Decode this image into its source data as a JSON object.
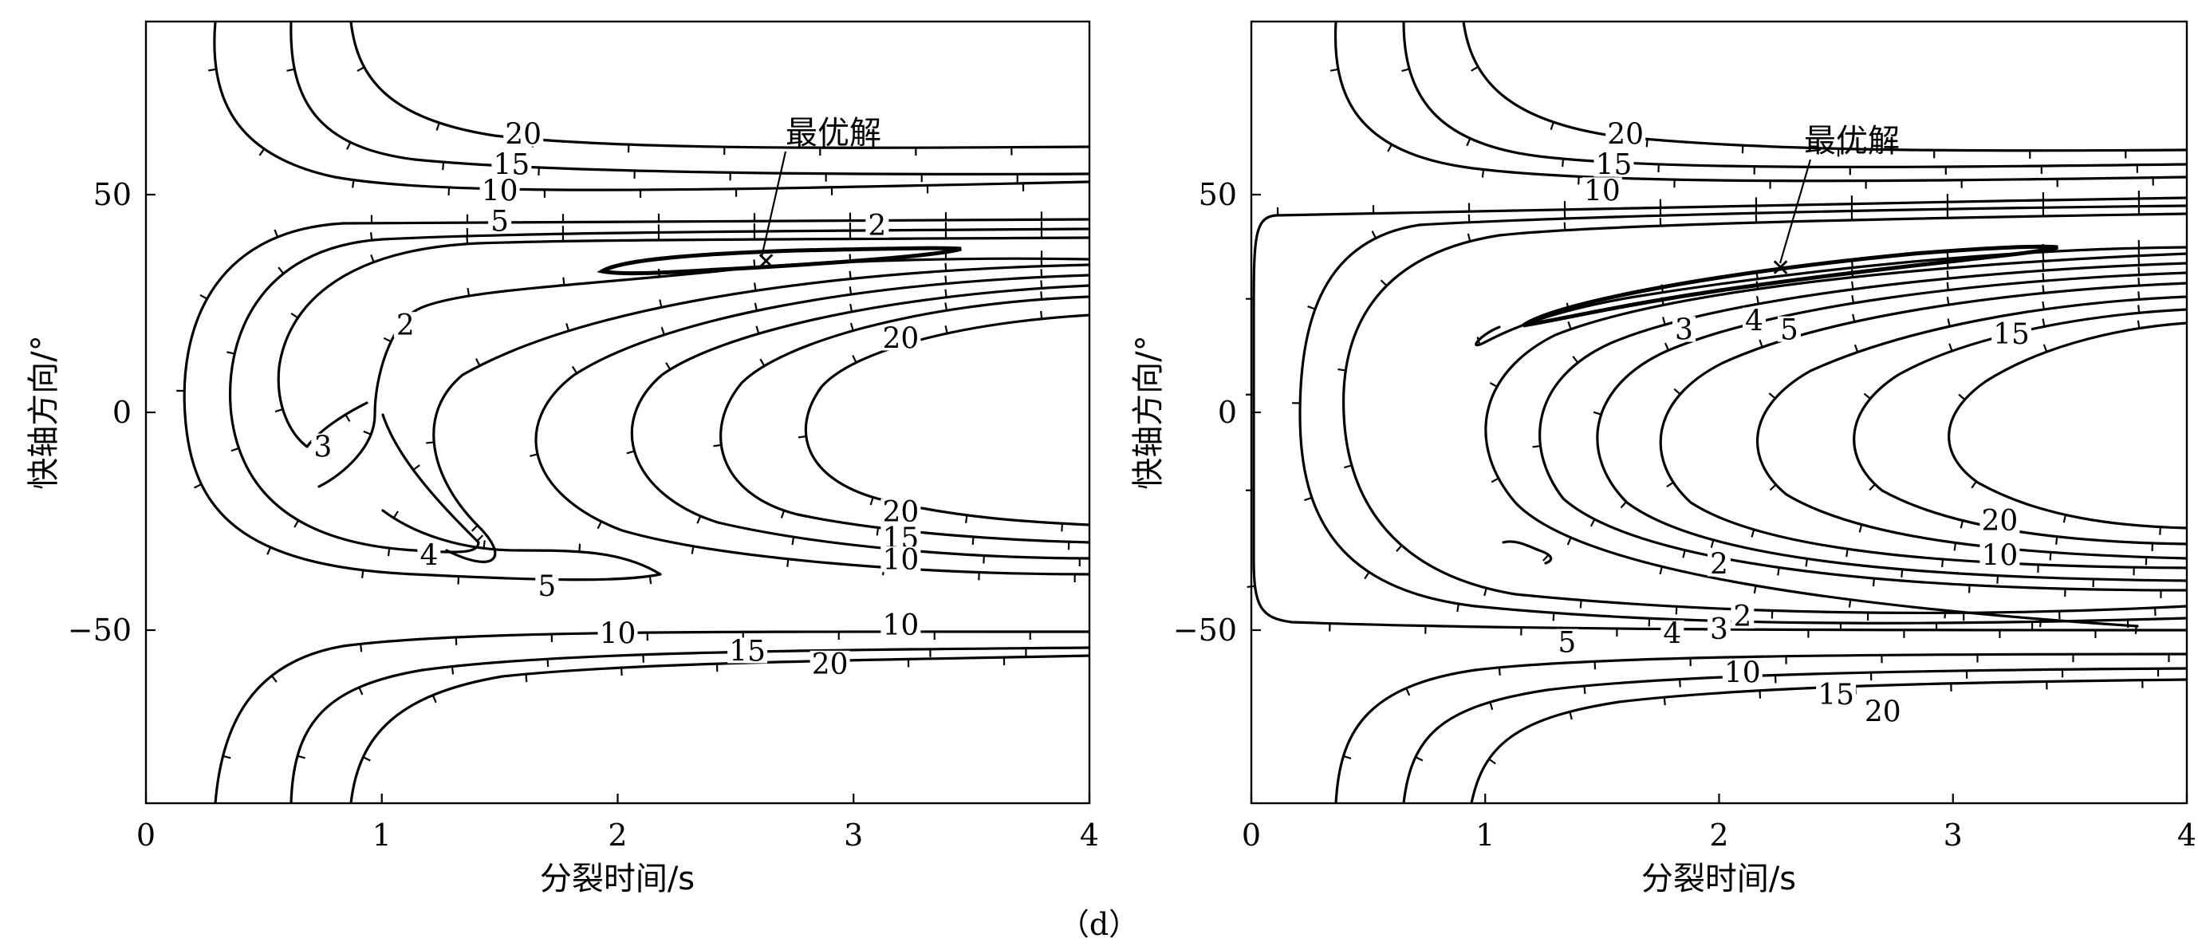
{
  "figure_label": "（d）",
  "chart_data": [
    {
      "type": "contour",
      "xlabel": "分裂时间/s",
      "ylabel": "快轴方向/°",
      "xlim": [
        0,
        4
      ],
      "ylim": [
        -90,
        90
      ],
      "xticks": [
        "0",
        "1",
        "2",
        "3",
        "4"
      ],
      "yticks": [
        "50",
        "0",
        "−50"
      ],
      "annotation": {
        "text": "最优解",
        "x": 2.6,
        "y": 35
      },
      "levels": [
        {
          "label": "20",
          "x": 1.6,
          "y": 64
        },
        {
          "label": "15",
          "x": 1.55,
          "y": 57
        },
        {
          "label": "10",
          "x": 1.5,
          "y": 51
        },
        {
          "label": "5",
          "x": 1.5,
          "y": 44
        },
        {
          "label": "2",
          "x": 3.1,
          "y": 43
        },
        {
          "label": "2",
          "x": 1.1,
          "y": 20
        },
        {
          "label": "3",
          "x": 0.75,
          "y": -8
        },
        {
          "label": "20",
          "x": 3.2,
          "y": 17
        },
        {
          "label": "4",
          "x": 1.2,
          "y": -33
        },
        {
          "label": "5",
          "x": 1.7,
          "y": -40
        },
        {
          "label": "20",
          "x": 3.2,
          "y": -23
        },
        {
          "label": "15",
          "x": 3.2,
          "y": -29
        },
        {
          "label": "10",
          "x": 3.2,
          "y": -34
        },
        {
          "label": "10",
          "x": 2.0,
          "y": -51
        },
        {
          "label": "10",
          "x": 3.2,
          "y": -49
        },
        {
          "label": "15",
          "x": 2.55,
          "y": -55
        },
        {
          "label": "20",
          "x": 2.9,
          "y": -58
        }
      ]
    },
    {
      "type": "contour",
      "xlabel": "分裂时间/s",
      "ylabel": "快轴方向/°",
      "xlim": [
        0,
        4
      ],
      "ylim": [
        -90,
        90
      ],
      "xticks": [
        "0",
        "1",
        "2",
        "3",
        "4"
      ],
      "yticks": [
        "50",
        "0",
        "−50"
      ],
      "annotation": {
        "text": "最优解",
        "x": 2.25,
        "y": 33
      },
      "levels": [
        {
          "label": "20",
          "x": 1.6,
          "y": 64
        },
        {
          "label": "15",
          "x": 1.55,
          "y": 57
        },
        {
          "label": "10",
          "x": 1.5,
          "y": 51
        },
        {
          "label": "3",
          "x": 1.85,
          "y": 19
        },
        {
          "label": "4",
          "x": 2.15,
          "y": 21
        },
        {
          "label": "5",
          "x": 2.3,
          "y": 19
        },
        {
          "label": "15",
          "x": 3.25,
          "y": 18
        },
        {
          "label": "20",
          "x": 3.2,
          "y": -25
        },
        {
          "label": "10",
          "x": 3.2,
          "y": -33
        },
        {
          "label": "2",
          "x": 2.0,
          "y": -35
        },
        {
          "label": "2",
          "x": 2.1,
          "y": -47
        },
        {
          "label": "3",
          "x": 2.0,
          "y": -50
        },
        {
          "label": "4",
          "x": 1.8,
          "y": -51
        },
        {
          "label": "5",
          "x": 1.35,
          "y": -53
        },
        {
          "label": "10",
          "x": 2.1,
          "y": -60
        },
        {
          "label": "15",
          "x": 2.5,
          "y": -65
        },
        {
          "label": "20",
          "x": 2.7,
          "y": -69
        }
      ]
    }
  ]
}
